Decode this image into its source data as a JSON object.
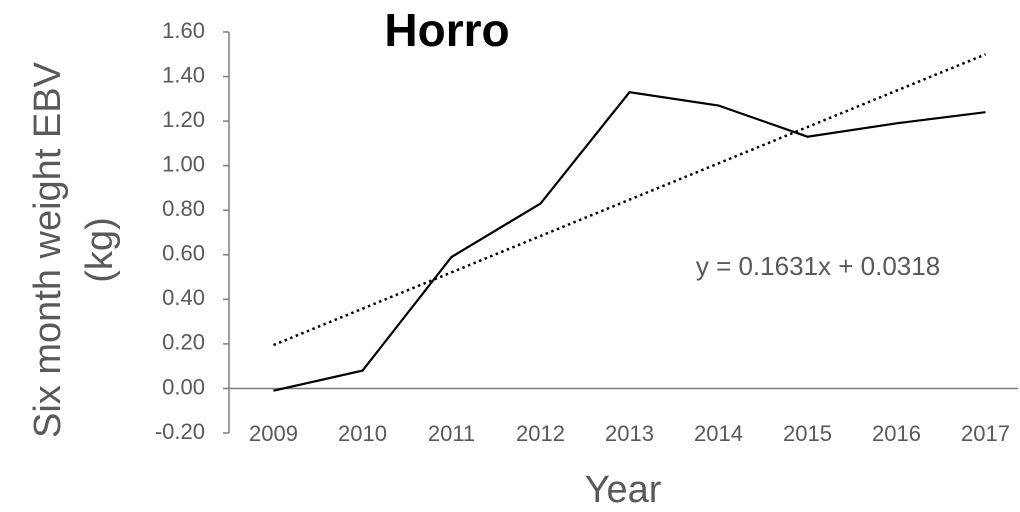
{
  "chart_data": {
    "type": "line",
    "title": "Horro",
    "xlabel": "Year",
    "ylabel": [
      "Six month weight EBV",
      "(kg)"
    ],
    "categories": [
      "2009",
      "2010",
      "2011",
      "2012",
      "2013",
      "2014",
      "2015",
      "2016",
      "2017"
    ],
    "series": [
      {
        "name": "Horro",
        "color": "#000000",
        "values": [
          -0.01,
          0.08,
          0.59,
          0.83,
          1.33,
          1.27,
          1.13,
          1.19,
          1.24
        ]
      }
    ],
    "trendline": {
      "slope": 0.1631,
      "intercept": 0.0318,
      "label": "y = 0.1631x + 0.0318",
      "color": "#000000"
    },
    "ylim": [
      -0.2,
      1.6
    ],
    "yticks": [
      {
        "value": -0.2,
        "label": "-0.20"
      },
      {
        "value": 0,
        "label": "0.00"
      },
      {
        "value": 0.2,
        "label": "0.20"
      },
      {
        "value": 0.4,
        "label": "0.40"
      },
      {
        "value": 0.6,
        "label": "0.60"
      },
      {
        "value": 0.8,
        "label": "0.80"
      },
      {
        "value": 1.0,
        "label": "1.00"
      },
      {
        "value": 1.2,
        "label": "1.20"
      },
      {
        "value": 1.4,
        "label": "1.40"
      },
      {
        "value": 1.6,
        "label": "1.60"
      }
    ],
    "grid": false
  }
}
